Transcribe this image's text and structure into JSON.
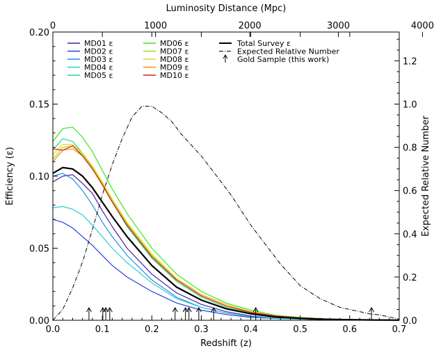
{
  "chart_data": {
    "type": "line",
    "xlabel": "Redshift (z)",
    "ylabel": "Efficiency (ε)",
    "y2label": "Expected Relative Number",
    "x2label": "Luminosity Distance (Mpc)",
    "xlim": [
      0.0,
      0.7
    ],
    "ylim": [
      0.0,
      0.2
    ],
    "y2lim": [
      0.0,
      1.3333
    ],
    "xticks": [
      "0.0",
      "0.1",
      "0.2",
      "0.3",
      "0.4",
      "0.5",
      "0.6",
      "0.7"
    ],
    "yticks": [
      "0.00",
      "0.05",
      "0.10",
      "0.15",
      "0.20"
    ],
    "y2ticks": [
      "0.0",
      "0.2",
      "0.4",
      "0.6",
      "0.8",
      "1.0",
      "1.2"
    ],
    "x2ticks": [
      "0",
      "1000",
      "2000",
      "3000",
      "4000"
    ],
    "x2tick_positions_z": [
      0.0,
      0.2075,
      0.398,
      0.577,
      0.747
    ],
    "legend_position": "top-left",
    "series": [
      {
        "name": "MD01 ε",
        "color": "#4a1fa8",
        "z": [
          0.0,
          0.02,
          0.04,
          0.06,
          0.08,
          0.1,
          0.12,
          0.15,
          0.2,
          0.25,
          0.3,
          0.35,
          0.4,
          0.45,
          0.5,
          0.55,
          0.6,
          0.65,
          0.7
        ],
        "values": [
          0.096,
          0.1,
          0.101,
          0.095,
          0.088,
          0.076,
          0.065,
          0.05,
          0.032,
          0.019,
          0.011,
          0.006,
          0.003,
          0.0015,
          0.001,
          0.0005,
          0.0003,
          0.0002,
          0.0001
        ]
      },
      {
        "name": "MD02 ε",
        "color": "#2b3fe0",
        "z": [
          0.0,
          0.02,
          0.04,
          0.06,
          0.08,
          0.1,
          0.12,
          0.15,
          0.2,
          0.25,
          0.3,
          0.35,
          0.4,
          0.45,
          0.5,
          0.55,
          0.6,
          0.65,
          0.7
        ],
        "values": [
          0.07,
          0.068,
          0.064,
          0.058,
          0.052,
          0.045,
          0.038,
          0.03,
          0.02,
          0.012,
          0.007,
          0.004,
          0.002,
          0.0012,
          0.0008,
          0.0005,
          0.0003,
          0.0002,
          0.0001
        ]
      },
      {
        "name": "MD03 ε",
        "color": "#1f8fe0",
        "z": [
          0.0,
          0.02,
          0.04,
          0.06,
          0.08,
          0.1,
          0.12,
          0.15,
          0.2,
          0.25,
          0.3,
          0.35,
          0.4,
          0.45,
          0.5,
          0.55,
          0.6,
          0.65,
          0.7
        ],
        "values": [
          0.1,
          0.102,
          0.098,
          0.09,
          0.08,
          0.068,
          0.058,
          0.045,
          0.028,
          0.016,
          0.009,
          0.005,
          0.0025,
          0.0013,
          0.0008,
          0.0004,
          0.0003,
          0.0002,
          0.0001
        ]
      },
      {
        "name": "MD04 ε",
        "color": "#22d0d0",
        "z": [
          0.0,
          0.02,
          0.04,
          0.06,
          0.08,
          0.1,
          0.12,
          0.15,
          0.2,
          0.25,
          0.3,
          0.35,
          0.4,
          0.45,
          0.5,
          0.55,
          0.6,
          0.65,
          0.7
        ],
        "values": [
          0.078,
          0.079,
          0.077,
          0.073,
          0.066,
          0.058,
          0.05,
          0.04,
          0.026,
          0.015,
          0.009,
          0.005,
          0.0025,
          0.0013,
          0.0008,
          0.0004,
          0.0003,
          0.0002,
          0.0001
        ]
      },
      {
        "name": "MD05 ε",
        "color": "#25d98a",
        "z": [
          0.0,
          0.02,
          0.04,
          0.06,
          0.08,
          0.1,
          0.12,
          0.15,
          0.2,
          0.25,
          0.3,
          0.35,
          0.4,
          0.45,
          0.5,
          0.55,
          0.6,
          0.65,
          0.7
        ],
        "values": [
          0.118,
          0.126,
          0.124,
          0.116,
          0.106,
          0.094,
          0.082,
          0.065,
          0.043,
          0.027,
          0.016,
          0.009,
          0.005,
          0.0025,
          0.0015,
          0.0008,
          0.0004,
          0.0003,
          0.0002
        ]
      },
      {
        "name": "MD06 ε",
        "color": "#3ce61e",
        "z": [
          0.0,
          0.02,
          0.04,
          0.06,
          0.08,
          0.1,
          0.12,
          0.15,
          0.2,
          0.25,
          0.3,
          0.35,
          0.4,
          0.45,
          0.5,
          0.55,
          0.6,
          0.65,
          0.7
        ],
        "values": [
          0.124,
          0.133,
          0.134,
          0.127,
          0.117,
          0.104,
          0.091,
          0.074,
          0.05,
          0.032,
          0.02,
          0.012,
          0.007,
          0.0035,
          0.002,
          0.001,
          0.0005,
          0.0003,
          0.0002
        ]
      },
      {
        "name": "MD07 ε",
        "color": "#9ae01e",
        "z": [
          0.0,
          0.02,
          0.04,
          0.06,
          0.08,
          0.1,
          0.12,
          0.15,
          0.2,
          0.25,
          0.3,
          0.35,
          0.4,
          0.45,
          0.5,
          0.55,
          0.6,
          0.65,
          0.7
        ],
        "values": [
          0.112,
          0.12,
          0.121,
          0.115,
          0.106,
          0.095,
          0.083,
          0.067,
          0.045,
          0.029,
          0.018,
          0.011,
          0.006,
          0.003,
          0.0018,
          0.0009,
          0.0005,
          0.0003,
          0.0002
        ]
      },
      {
        "name": "MD08 ε",
        "color": "#f0d21e",
        "z": [
          0.0,
          0.02,
          0.04,
          0.06,
          0.08,
          0.1,
          0.12,
          0.15,
          0.2,
          0.25,
          0.3,
          0.35,
          0.4,
          0.45,
          0.5,
          0.55,
          0.6,
          0.65,
          0.7
        ],
        "values": [
          0.115,
          0.122,
          0.122,
          0.116,
          0.107,
          0.096,
          0.084,
          0.068,
          0.046,
          0.029,
          0.018,
          0.011,
          0.006,
          0.003,
          0.0018,
          0.0009,
          0.0005,
          0.0003,
          0.0002
        ]
      },
      {
        "name": "MD09 ε",
        "color": "#f08c1e",
        "z": [
          0.0,
          0.02,
          0.04,
          0.06,
          0.08,
          0.1,
          0.12,
          0.15,
          0.2,
          0.25,
          0.3,
          0.35,
          0.4,
          0.45,
          0.5,
          0.55,
          0.6,
          0.65,
          0.7
        ],
        "values": [
          0.11,
          0.118,
          0.119,
          0.114,
          0.105,
          0.094,
          0.082,
          0.066,
          0.044,
          0.028,
          0.017,
          0.01,
          0.0055,
          0.003,
          0.0017,
          0.0009,
          0.0005,
          0.0003,
          0.0002
        ]
      },
      {
        "name": "MD10 ε",
        "color": "#e01e1e",
        "z": [
          0.0,
          0.02,
          0.04,
          0.06,
          0.08,
          0.1,
          0.12,
          0.15,
          0.2,
          0.25,
          0.3,
          0.35,
          0.4,
          0.45,
          0.5,
          0.55,
          0.6,
          0.65,
          0.7
        ],
        "values": [
          0.119,
          0.118,
          0.121,
          0.114,
          0.105,
          0.094,
          0.082,
          0.066,
          0.044,
          0.028,
          0.017,
          0.01,
          0.0055,
          0.003,
          0.0017,
          0.0009,
          0.0005,
          0.0003,
          0.0002
        ]
      }
    ],
    "total": {
      "name": "Total Survey ε",
      "color": "#000000",
      "z": [
        0.0,
        0.02,
        0.04,
        0.06,
        0.08,
        0.1,
        0.12,
        0.15,
        0.2,
        0.25,
        0.3,
        0.35,
        0.4,
        0.45,
        0.5,
        0.55,
        0.6,
        0.65,
        0.7
      ],
      "values": [
        0.102,
        0.106,
        0.105,
        0.1,
        0.092,
        0.082,
        0.072,
        0.058,
        0.038,
        0.023,
        0.014,
        0.008,
        0.0045,
        0.0023,
        0.0013,
        0.0007,
        0.0004,
        0.0002,
        0.0001
      ]
    },
    "expected": {
      "name": "Expected Relative Number",
      "color": "#000000",
      "z": [
        0.0,
        0.02,
        0.04,
        0.06,
        0.08,
        0.1,
        0.12,
        0.14,
        0.16,
        0.18,
        0.2,
        0.22,
        0.24,
        0.26,
        0.28,
        0.3,
        0.32,
        0.34,
        0.36,
        0.38,
        0.4,
        0.42,
        0.44,
        0.46,
        0.48,
        0.5,
        0.52,
        0.54,
        0.56,
        0.58,
        0.6,
        0.62,
        0.64,
        0.66,
        0.68,
        0.7
      ],
      "values": [
        0.0,
        0.05,
        0.15,
        0.27,
        0.42,
        0.58,
        0.72,
        0.84,
        0.94,
        0.99,
        0.99,
        0.96,
        0.92,
        0.86,
        0.81,
        0.76,
        0.7,
        0.64,
        0.58,
        0.51,
        0.44,
        0.38,
        0.32,
        0.26,
        0.21,
        0.16,
        0.13,
        0.1,
        0.08,
        0.06,
        0.05,
        0.04,
        0.03,
        0.025,
        0.015,
        0.005
      ]
    },
    "gold_sample": {
      "name": "Gold Sample (this work)",
      "z": [
        0.073,
        0.101,
        0.107,
        0.115,
        0.247,
        0.268,
        0.275,
        0.295,
        0.325,
        0.41,
        0.644
      ]
    }
  }
}
